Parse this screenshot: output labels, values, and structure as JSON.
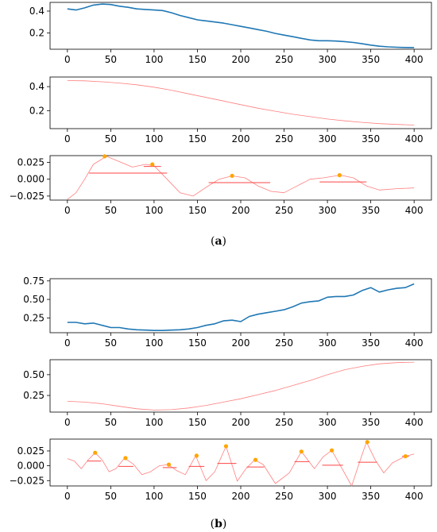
{
  "figures": [
    {
      "caption_open": "(",
      "caption_letter": "a",
      "caption_close": ")"
    },
    {
      "caption_open": "(",
      "caption_letter": "b",
      "caption_close": ")"
    }
  ],
  "colors": {
    "raw": "#1f77b4",
    "smooth": "#ff7f7f",
    "peak": "#ffa500",
    "width_line": "#ff4444"
  },
  "chart_data": [
    {
      "type": "line",
      "panel": "a-raw-signal",
      "xlim": [
        0,
        400
      ],
      "ylim": [
        0.05,
        0.48
      ],
      "xticks": [
        0,
        50,
        100,
        150,
        200,
        250,
        300,
        350,
        400
      ],
      "yticks": [
        0.2,
        0.4
      ],
      "ytick_labels": [
        "0.2",
        "0.4"
      ],
      "x": [
        0,
        10,
        20,
        30,
        40,
        50,
        60,
        70,
        80,
        90,
        100,
        110,
        120,
        130,
        140,
        150,
        160,
        170,
        180,
        190,
        200,
        210,
        220,
        230,
        240,
        250,
        260,
        270,
        280,
        290,
        300,
        310,
        320,
        330,
        340,
        350,
        360,
        370,
        380,
        390,
        400
      ],
      "y": [
        0.42,
        0.41,
        0.43,
        0.455,
        0.465,
        0.46,
        0.445,
        0.435,
        0.42,
        0.415,
        0.41,
        0.405,
        0.385,
        0.36,
        0.34,
        0.32,
        0.31,
        0.3,
        0.29,
        0.275,
        0.26,
        0.245,
        0.23,
        0.215,
        0.195,
        0.18,
        0.165,
        0.15,
        0.135,
        0.128,
        0.128,
        0.125,
        0.12,
        0.112,
        0.1,
        0.088,
        0.078,
        0.072,
        0.068,
        0.066,
        0.065
      ]
    },
    {
      "type": "line",
      "panel": "a-smoothed",
      "xlim": [
        0,
        400
      ],
      "ylim": [
        0.05,
        0.48
      ],
      "xticks": [
        0,
        50,
        100,
        150,
        200,
        250,
        300,
        350,
        400
      ],
      "yticks": [
        0.2,
        0.4
      ],
      "ytick_labels": [
        "0.2",
        "0.4"
      ],
      "x": [
        0,
        20,
        40,
        60,
        80,
        100,
        120,
        140,
        160,
        180,
        200,
        220,
        240,
        260,
        280,
        300,
        320,
        340,
        360,
        380,
        400
      ],
      "y": [
        0.45,
        0.448,
        0.44,
        0.43,
        0.415,
        0.395,
        0.37,
        0.34,
        0.31,
        0.28,
        0.25,
        0.22,
        0.195,
        0.17,
        0.15,
        0.13,
        0.115,
        0.102,
        0.092,
        0.085,
        0.08
      ]
    },
    {
      "type": "line",
      "panel": "a-detail-peaks",
      "xlim": [
        0,
        400
      ],
      "ylim": [
        -0.031,
        0.035
      ],
      "xticks": [
        0,
        50,
        100,
        150,
        200,
        250,
        300,
        350,
        400
      ],
      "yticks": [
        -0.025,
        0,
        0.025
      ],
      "ytick_labels": [
        "−0.025",
        "0.000",
        "0.025"
      ],
      "x": [
        0,
        10,
        20,
        30,
        45,
        60,
        75,
        90,
        100,
        115,
        130,
        145,
        160,
        175,
        190,
        205,
        220,
        235,
        250,
        265,
        280,
        295,
        315,
        330,
        345,
        360,
        380,
        400
      ],
      "y": [
        -0.03,
        -0.02,
        0.0,
        0.022,
        0.034,
        0.026,
        0.018,
        0.022,
        0.02,
        0.0,
        -0.02,
        -0.025,
        -0.012,
        0.0,
        0.005,
        0.002,
        -0.01,
        -0.018,
        -0.02,
        -0.01,
        0.0,
        0.002,
        0.006,
        0.002,
        -0.01,
        -0.016,
        -0.014,
        -0.013
      ],
      "peaks": [
        {
          "x": 43,
          "y": 0.034,
          "width_from": 25,
          "width_to": 115,
          "width_y": 0.009
        },
        {
          "x": 98,
          "y": 0.022,
          "width_from": 88,
          "width_to": 108,
          "width_y": 0.019
        },
        {
          "x": 190,
          "y": 0.005,
          "width_from": 163,
          "width_to": 234,
          "width_y": -0.005
        },
        {
          "x": 314,
          "y": 0.006,
          "width_from": 291,
          "width_to": 345,
          "width_y": -0.004
        }
      ]
    },
    {
      "type": "line",
      "panel": "b-raw-signal",
      "xlim": [
        0,
        400
      ],
      "ylim": [
        0.05,
        0.78
      ],
      "xticks": [
        0,
        50,
        100,
        150,
        200,
        250,
        300,
        350,
        400
      ],
      "yticks": [
        0.25,
        0.5,
        0.75
      ],
      "ytick_labels": [
        "0.25",
        "0.50",
        "0.75"
      ],
      "x": [
        0,
        10,
        20,
        30,
        40,
        50,
        60,
        70,
        80,
        90,
        100,
        110,
        120,
        130,
        140,
        150,
        160,
        170,
        180,
        190,
        200,
        210,
        220,
        230,
        240,
        250,
        260,
        270,
        280,
        290,
        300,
        310,
        320,
        330,
        340,
        350,
        360,
        370,
        380,
        390,
        400
      ],
      "y": [
        0.19,
        0.19,
        0.17,
        0.18,
        0.15,
        0.12,
        0.12,
        0.1,
        0.09,
        0.085,
        0.08,
        0.08,
        0.085,
        0.09,
        0.1,
        0.12,
        0.15,
        0.17,
        0.21,
        0.22,
        0.2,
        0.27,
        0.3,
        0.32,
        0.34,
        0.36,
        0.4,
        0.45,
        0.47,
        0.48,
        0.53,
        0.54,
        0.54,
        0.56,
        0.62,
        0.66,
        0.6,
        0.63,
        0.65,
        0.66,
        0.71
      ]
    },
    {
      "type": "line",
      "panel": "b-smoothed",
      "xlim": [
        0,
        400
      ],
      "ylim": [
        0.05,
        0.68
      ],
      "xticks": [
        0,
        50,
        100,
        150,
        200,
        250,
        300,
        350,
        400
      ],
      "yticks": [
        0.25,
        0.5
      ],
      "ytick_labels": [
        "0.25",
        "0.50"
      ],
      "x": [
        0,
        20,
        40,
        60,
        80,
        100,
        120,
        140,
        160,
        180,
        200,
        220,
        240,
        260,
        280,
        300,
        320,
        340,
        360,
        380,
        400
      ],
      "y": [
        0.18,
        0.17,
        0.15,
        0.12,
        0.09,
        0.075,
        0.08,
        0.1,
        0.13,
        0.17,
        0.21,
        0.26,
        0.31,
        0.37,
        0.43,
        0.5,
        0.56,
        0.6,
        0.63,
        0.645,
        0.65
      ]
    },
    {
      "type": "line",
      "panel": "b-detail-peaks",
      "xlim": [
        0,
        400
      ],
      "ylim": [
        -0.034,
        0.045
      ],
      "xticks": [
        0,
        50,
        100,
        150,
        200,
        250,
        300,
        350,
        400
      ],
      "yticks": [
        -0.025,
        0,
        0.025
      ],
      "ytick_labels": [
        "−0.025",
        "0.000",
        "0.025"
      ],
      "x": [
        0,
        8,
        16,
        24,
        32,
        40,
        48,
        56,
        66,
        76,
        86,
        96,
        106,
        116,
        126,
        136,
        148,
        160,
        170,
        183,
        196,
        206,
        216,
        226,
        240,
        256,
        270,
        285,
        295,
        305,
        315,
        328,
        338,
        345,
        355,
        365,
        375,
        390,
        400
      ],
      "y": [
        0.012,
        0.008,
        -0.005,
        0.01,
        0.022,
        0.01,
        -0.01,
        -0.005,
        0.013,
        0.003,
        -0.015,
        -0.01,
        0.0,
        0.002,
        -0.008,
        -0.015,
        0.017,
        -0.025,
        -0.01,
        0.033,
        -0.026,
        -0.005,
        0.01,
        0.002,
        -0.03,
        -0.012,
        0.024,
        -0.005,
        0.015,
        0.026,
        0.0,
        -0.034,
        0.01,
        0.04,
        0.01,
        -0.012,
        0.005,
        0.016,
        0.02
      ],
      "peaks": [
        {
          "x": 32,
          "y": 0.022,
          "width_from": 23,
          "width_to": 39,
          "width_y": 0.008
        },
        {
          "x": 67,
          "y": 0.013,
          "width_from": 59,
          "width_to": 76,
          "width_y": -0.001
        },
        {
          "x": 117,
          "y": 0.002,
          "width_from": 110,
          "width_to": 126,
          "width_y": -0.003
        },
        {
          "x": 149,
          "y": 0.017,
          "width_from": 140,
          "width_to": 158,
          "width_y": -0.001
        },
        {
          "x": 183,
          "y": 0.033,
          "width_from": 173,
          "width_to": 195,
          "width_y": 0.004
        },
        {
          "x": 217,
          "y": 0.01,
          "width_from": 207,
          "width_to": 227,
          "width_y": -0.002
        },
        {
          "x": 270,
          "y": 0.024,
          "width_from": 262,
          "width_to": 279,
          "width_y": 0.007
        },
        {
          "x": 305,
          "y": 0.026,
          "width_from": 294,
          "width_to": 318,
          "width_y": 0.001
        },
        {
          "x": 346,
          "y": 0.04,
          "width_from": 335,
          "width_to": 357,
          "width_y": 0.006
        },
        {
          "x": 390,
          "y": 0.016,
          "width_from": 386,
          "width_to": 394,
          "width_y": 0.016
        }
      ]
    }
  ]
}
